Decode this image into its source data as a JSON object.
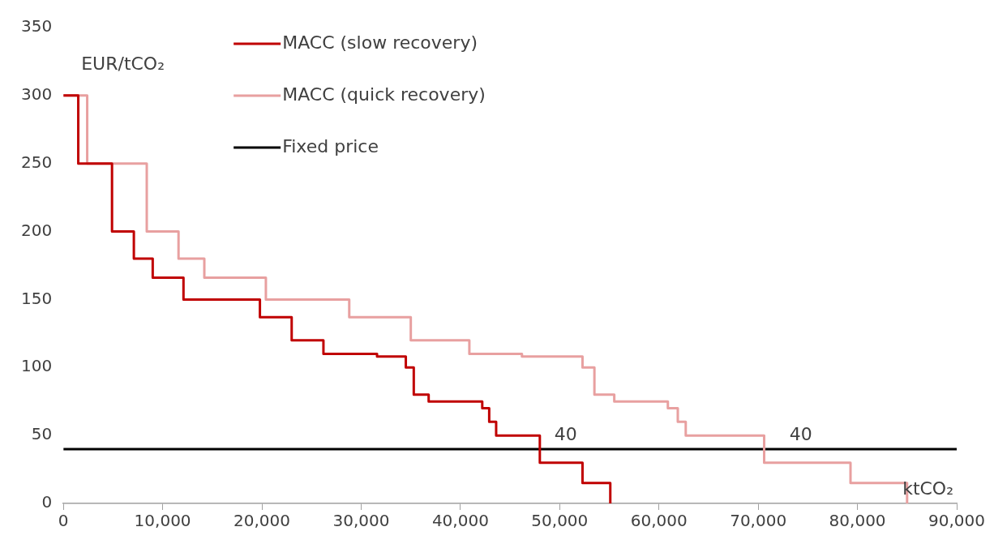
{
  "chart_data": {
    "type": "step",
    "xlabel": "ktCO₂",
    "ylabel": "EUR/tCO₂",
    "xlim": [
      0,
      90000
    ],
    "ylim": [
      0,
      350
    ],
    "xticks": [
      {
        "value": 0,
        "label": "0"
      },
      {
        "value": 10000,
        "label": "10,000"
      },
      {
        "value": 20000,
        "label": "20,000"
      },
      {
        "value": 30000,
        "label": "30,000"
      },
      {
        "value": 40000,
        "label": "40,000"
      },
      {
        "value": 50000,
        "label": "50,000"
      },
      {
        "value": 60000,
        "label": "60,000"
      },
      {
        "value": 70000,
        "label": "70,000"
      },
      {
        "value": 80000,
        "label": "80,000"
      },
      {
        "value": 90000,
        "label": "90,000"
      }
    ],
    "yticks": [
      0,
      50,
      100,
      150,
      200,
      250,
      300,
      350
    ],
    "grid": false,
    "legend": "top left",
    "marker": "none",
    "line_style": "solid",
    "series": [
      {
        "name": "MACC (slow recovery)",
        "color": "#c00000",
        "x": [
          0,
          1500,
          4900,
          7100,
          9000,
          12100,
          19800,
          23000,
          26200,
          31600,
          34500,
          35300,
          36800,
          42200,
          42900,
          43600,
          48000,
          52300,
          55100
        ],
        "values": [
          300,
          250,
          200,
          180,
          166,
          150,
          137,
          120,
          110,
          108,
          100,
          80,
          75,
          70,
          60,
          50,
          30,
          15,
          0
        ]
      },
      {
        "name": "MACC (quick recovery)",
        "color": "#e8a0a0",
        "x": [
          0,
          2400,
          8400,
          11600,
          14200,
          20400,
          28800,
          35000,
          40900,
          46200,
          52300,
          53500,
          55500,
          60900,
          61900,
          62700,
          70600,
          79300,
          85000
        ],
        "values": [
          300,
          250,
          200,
          180,
          166,
          150,
          137,
          120,
          110,
          108,
          100,
          80,
          75,
          70,
          60,
          50,
          30,
          15,
          0
        ]
      },
      {
        "name": "Fixed price",
        "color": "#000000",
        "type": "line",
        "x": [
          0,
          90000
        ],
        "values": [
          40,
          40
        ]
      }
    ],
    "annotations": [
      {
        "text": "40",
        "x": 50600,
        "y": 40
      },
      {
        "text": "40",
        "x": 74300,
        "y": 40
      }
    ]
  }
}
